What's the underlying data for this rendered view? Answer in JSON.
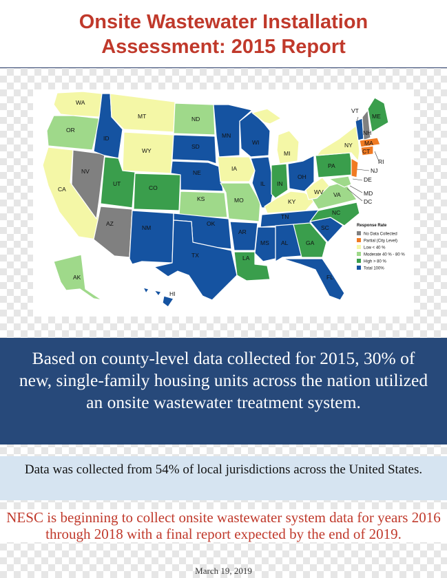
{
  "header": {
    "title_line1": "Onsite Wastewater Installation",
    "title_line2": "Assessment: 2015 Report"
  },
  "map": {
    "legend": {
      "title": "Response Rate",
      "items": [
        {
          "label": "No Data Collected",
          "color": "#808080"
        },
        {
          "label": "Partial (City Level)",
          "color": "#f07a22"
        },
        {
          "label": "Low < 40 %",
          "color": "#f4f7a6"
        },
        {
          "label": "Moderate 40 % - 80 %",
          "color": "#9fd98a"
        },
        {
          "label": "High > 80 %",
          "color": "#3a9e4c"
        },
        {
          "label": "Total 100%",
          "color": "#1553a1"
        }
      ]
    },
    "states": {
      "WA": "WA",
      "OR": "OR",
      "CA": "CA",
      "ID": "ID",
      "NV": "NV",
      "MT": "MT",
      "WY": "WY",
      "UT": "UT",
      "AZ": "AZ",
      "CO": "CO",
      "NM": "NM",
      "ND": "ND",
      "SD": "SD",
      "NE": "NE",
      "KS": "KS",
      "OK": "OK",
      "TX": "TX",
      "MN": "MN",
      "IA": "IA",
      "MO": "MO",
      "AR": "AR",
      "LA": "LA",
      "WI": "WI",
      "IL": "IL",
      "MI": "MI",
      "IN": "IN",
      "OH": "OH",
      "KY": "KY",
      "TN": "TN",
      "MS": "MS",
      "AL": "AL",
      "GA": "GA",
      "FL": "FL",
      "SC": "SC",
      "NC": "NC",
      "VA": "VA",
      "WV": "WV",
      "PA": "PA",
      "NY": "NY",
      "VT": "VT",
      "NH": "NH",
      "ME": "ME",
      "MA": "MA",
      "CT": "CT",
      "RI": "RI",
      "NJ": "NJ",
      "DE": "DE",
      "MD": "MD",
      "DC": "DC",
      "AK": "AK",
      "HI": "HI"
    }
  },
  "summary": "Based on county-level data collected for 2015, 30% of new, single-family housing units across the nation utilized an onsite wastewater treatment system.",
  "jurisdictions": "Data was collected from 54% of local jurisdictions across the United States.",
  "future": "NESC is beginning to collect onsite wastewater system data for years 2016 through 2018 with a final report expected by the end of 2019.",
  "date": "March 19, 2019"
}
